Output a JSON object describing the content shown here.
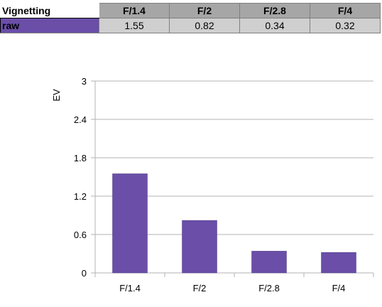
{
  "table": {
    "corner_label": "Vignetting",
    "row_label": "raw",
    "columns": [
      "F/1.4",
      "F/2",
      "F/2.8",
      "F/4"
    ],
    "values": [
      "1.55",
      "0.82",
      "0.34",
      "0.32"
    ]
  },
  "chart_data": {
    "type": "bar",
    "categories": [
      "F/1.4",
      "F/2",
      "F/2.8",
      "F/4"
    ],
    "series": [
      {
        "values": [
          1.55,
          0.82,
          0.34,
          0.32
        ],
        "color": "#6a4ea8"
      }
    ],
    "ylabel": "EV",
    "ylim": [
      0,
      3
    ],
    "yticks": [
      "0",
      "0.6",
      "1.2",
      "1.8",
      "2.4",
      "3"
    ],
    "grid": true
  }
}
